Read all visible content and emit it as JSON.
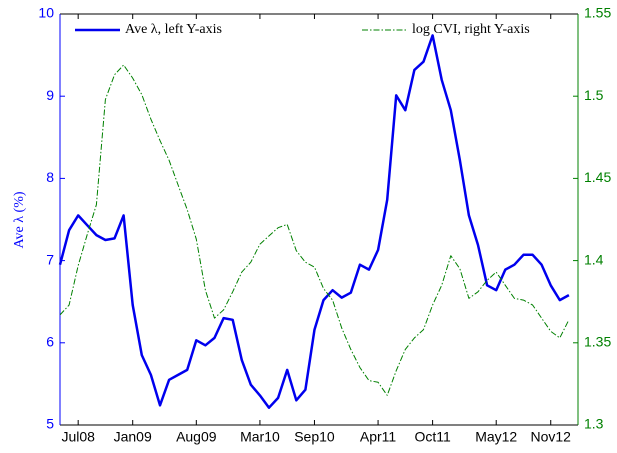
{
  "chart_data": {
    "type": "line",
    "ylabel": "Ave λ (%)",
    "x": [
      "2008-05",
      "2008-06",
      "2008-07",
      "2008-08",
      "2008-09",
      "2008-10",
      "2008-11",
      "2008-12",
      "2009-01",
      "2009-02",
      "2009-03",
      "2009-04",
      "2009-05",
      "2009-06",
      "2009-07",
      "2009-08",
      "2009-09",
      "2009-10",
      "2009-11",
      "2009-12",
      "2010-01",
      "2010-02",
      "2010-03",
      "2010-04",
      "2010-05",
      "2010-06",
      "2010-07",
      "2010-08",
      "2010-09",
      "2010-10",
      "2010-11",
      "2010-12",
      "2011-01",
      "2011-02",
      "2011-03",
      "2011-04",
      "2011-05",
      "2011-06",
      "2011-07",
      "2011-08",
      "2011-09",
      "2011-10",
      "2011-11",
      "2011-12",
      "2012-01",
      "2012-02",
      "2012-03",
      "2012-04",
      "2012-05",
      "2012-06",
      "2012-07",
      "2012-08",
      "2012-09",
      "2012-10",
      "2012-11",
      "2012-12",
      "2013-01"
    ],
    "xlim": [
      "2008-05",
      "2013-02"
    ],
    "xticks": [
      {
        "value": "2008-07",
        "label": "Jul08"
      },
      {
        "value": "2009-01",
        "label": "Jan09"
      },
      {
        "value": "2009-08",
        "label": "Aug09"
      },
      {
        "value": "2010-03",
        "label": "Mar10"
      },
      {
        "value": "2010-09",
        "label": "Sep10"
      },
      {
        "value": "2011-04",
        "label": "Apr11"
      },
      {
        "value": "2011-10",
        "label": "Oct11"
      },
      {
        "value": "2012-05",
        "label": "May12"
      },
      {
        "value": "2012-11",
        "label": "Nov12"
      }
    ],
    "ylim": [
      5,
      10
    ],
    "yticks": [
      5,
      6,
      7,
      8,
      9,
      10
    ],
    "y2lim": [
      1.3,
      1.55
    ],
    "y2ticks": [
      1.3,
      1.35,
      1.4,
      1.45,
      1.5,
      1.55
    ],
    "ycolor": "#0000ff",
    "y2color": "#008000",
    "series": [
      {
        "name": "Ave λ, left Y-axis",
        "color": "#0000ee",
        "axis": "y",
        "style": "solid",
        "values": [
          6.95,
          7.37,
          7.55,
          7.43,
          7.31,
          7.25,
          7.27,
          7.55,
          6.46,
          5.85,
          5.61,
          5.24,
          5.55,
          5.61,
          5.67,
          6.03,
          5.97,
          6.06,
          6.3,
          6.28,
          5.79,
          5.49,
          5.36,
          5.21,
          5.33,
          5.67,
          5.3,
          5.43,
          6.16,
          6.52,
          6.64,
          6.55,
          6.61,
          6.95,
          6.89,
          7.13,
          7.74,
          9.01,
          8.83,
          9.32,
          9.42,
          9.74,
          9.2,
          8.83,
          8.22,
          7.55,
          7.19,
          6.7,
          6.64,
          6.89,
          6.95,
          7.07,
          7.07,
          6.95,
          6.7,
          6.52,
          6.58
        ]
      },
      {
        "name": "log CVI, right Y-axis",
        "color": "#008000",
        "axis": "y2",
        "style": "dash-dot",
        "values": [
          1.367,
          1.373,
          1.397,
          1.416,
          1.434,
          1.498,
          1.513,
          1.519,
          1.511,
          1.501,
          1.486,
          1.473,
          1.461,
          1.446,
          1.431,
          1.413,
          1.382,
          1.365,
          1.37,
          1.381,
          1.393,
          1.399,
          1.41,
          1.415,
          1.42,
          1.422,
          1.406,
          1.399,
          1.396,
          1.383,
          1.376,
          1.359,
          1.346,
          1.335,
          1.327,
          1.326,
          1.318,
          1.333,
          1.346,
          1.353,
          1.358,
          1.373,
          1.385,
          1.403,
          1.395,
          1.377,
          1.381,
          1.388,
          1.393,
          1.385,
          1.377,
          1.376,
          1.373,
          1.365,
          1.357,
          1.353,
          1.364
        ]
      }
    ]
  }
}
